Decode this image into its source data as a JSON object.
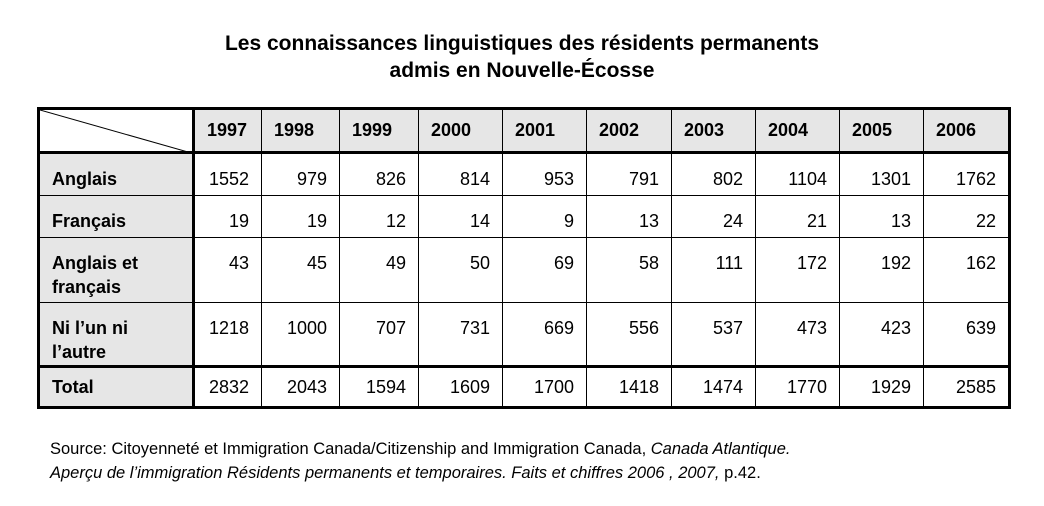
{
  "title": {
    "line1": "Les connaissances linguistiques des résidents permanents",
    "line2": "admis en Nouvelle-Écosse"
  },
  "table": {
    "years": [
      "1997",
      "1998",
      "1999",
      "2000",
      "2001",
      "2002",
      "2003",
      "2004",
      "2005",
      "2006"
    ],
    "rows": [
      {
        "label": "Anglais",
        "values": [
          "1552",
          "979",
          "826",
          "814",
          "953",
          "791",
          "802",
          "1104",
          "1301",
          "1762"
        ]
      },
      {
        "label": "Français",
        "values": [
          "19",
          "19",
          "12",
          "14",
          "9",
          "13",
          "24",
          "21",
          "13",
          "22"
        ]
      },
      {
        "label_line1": "Anglais et",
        "label_line2": "français",
        "values": [
          "43",
          "45",
          "49",
          "50",
          "69",
          "58",
          "111",
          "172",
          "192",
          "162"
        ]
      },
      {
        "label_line1": "Ni l’un ni",
        "label_line2": "l’autre",
        "values": [
          "1218",
          "1000",
          "707",
          "731",
          "669",
          "556",
          "537",
          "473",
          "423",
          "639"
        ]
      },
      {
        "label": "Total",
        "values": [
          "2832",
          "2043",
          "1594",
          "1609",
          "1700",
          "1418",
          "1474",
          "1770",
          "1929",
          "2585"
        ]
      }
    ]
  },
  "source": {
    "prefix": "Source:  Citoyenneté et Immigration Canada/Citizenship and Immigration Canada, ",
    "italic1": "Canada Atlantique.",
    "italic2": "Aperçu de l’immigration Résidents permanents et temporaires. Faits et chiffres 2006 , 2007,",
    "suffix": " p.42."
  }
}
